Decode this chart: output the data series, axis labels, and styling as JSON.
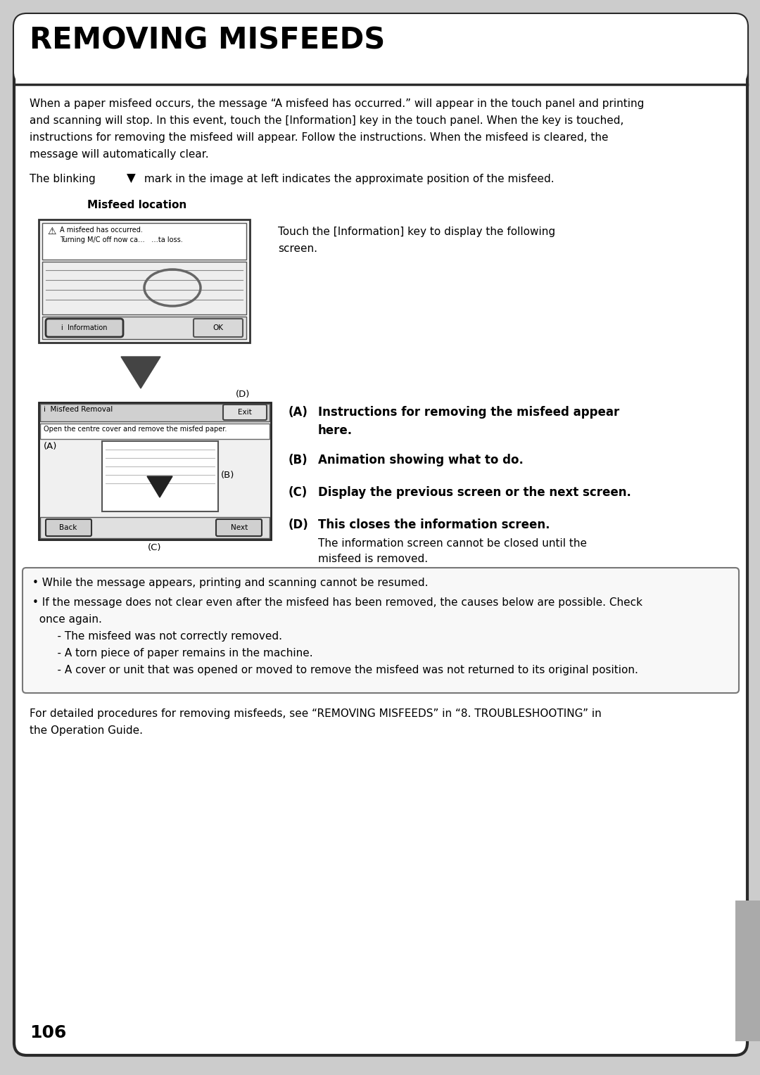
{
  "title": "REMOVING MISFEEDS",
  "page_number": "106",
  "intro_text_lines": [
    "When a paper misfeed occurs, the message “A misfeed has occurred.” will appear in the touch panel and printing",
    "and scanning will stop. In this event, touch the [Information] key in the touch panel. When the key is touched,",
    "instructions for removing the misfeed will appear. Follow the instructions. When the misfeed is cleared, the",
    "message will automatically clear."
  ],
  "blinking_line": "The blinking   ▼   mark in the image at left indicates the approximate position of the misfeed.",
  "misfeed_location_label": "Misfeed location",
  "touch_info_line1": "Touch the [Information] key to display the following",
  "touch_info_line2": "screen.",
  "screen1_msg1": "⚠  A misfeed has occurred.",
  "screen1_msg2": "    Turning M/C off now ca…   …ta loss.",
  "screen1_info_btn": "i  Information",
  "screen1_ok_btn": "OK",
  "screen2_title": "i  Misfeed Removal",
  "screen2_exit": "Exit",
  "screen2_inst": "Open the centre cover and remove the misfed paper.",
  "screen2_back": "Back",
  "screen2_next": "Next",
  "label_A": "(A)",
  "label_A_text1": "Instructions for removing the misfeed appear",
  "label_A_text2": "here.",
  "label_B": "(B)",
  "label_B_text": "Animation showing what to do.",
  "label_C": "(C)",
  "label_C_text": "Display the previous screen or the next screen.",
  "label_D": "(D)",
  "label_D_text": "This closes the information screen.",
  "label_D_sub1": "The information screen cannot be closed until the",
  "label_D_sub2": "misfeed is removed.",
  "bullet1": "• While the message appears, printing and scanning cannot be resumed.",
  "bullet2": "• If the message does not clear even after the misfeed has been removed, the causes below are possible. Check",
  "bullet2b": "  once again.",
  "sub1": "    - The misfeed was not correctly removed.",
  "sub2": "    - A torn piece of paper remains in the machine.",
  "sub3": "    - A cover or unit that was opened or moved to remove the misfeed was not returned to its original position.",
  "footer1": "For detailed procedures for removing misfeeds, see “REMOVING MISFEEDS” in “8. TROUBLESHOOTING” in",
  "footer2": "the Operation Guide.",
  "outer_bg": "#cccccc",
  "inner_bg": "#ffffff",
  "border_col": "#2a2a2a",
  "gray_tab_col": "#aaaaaa"
}
